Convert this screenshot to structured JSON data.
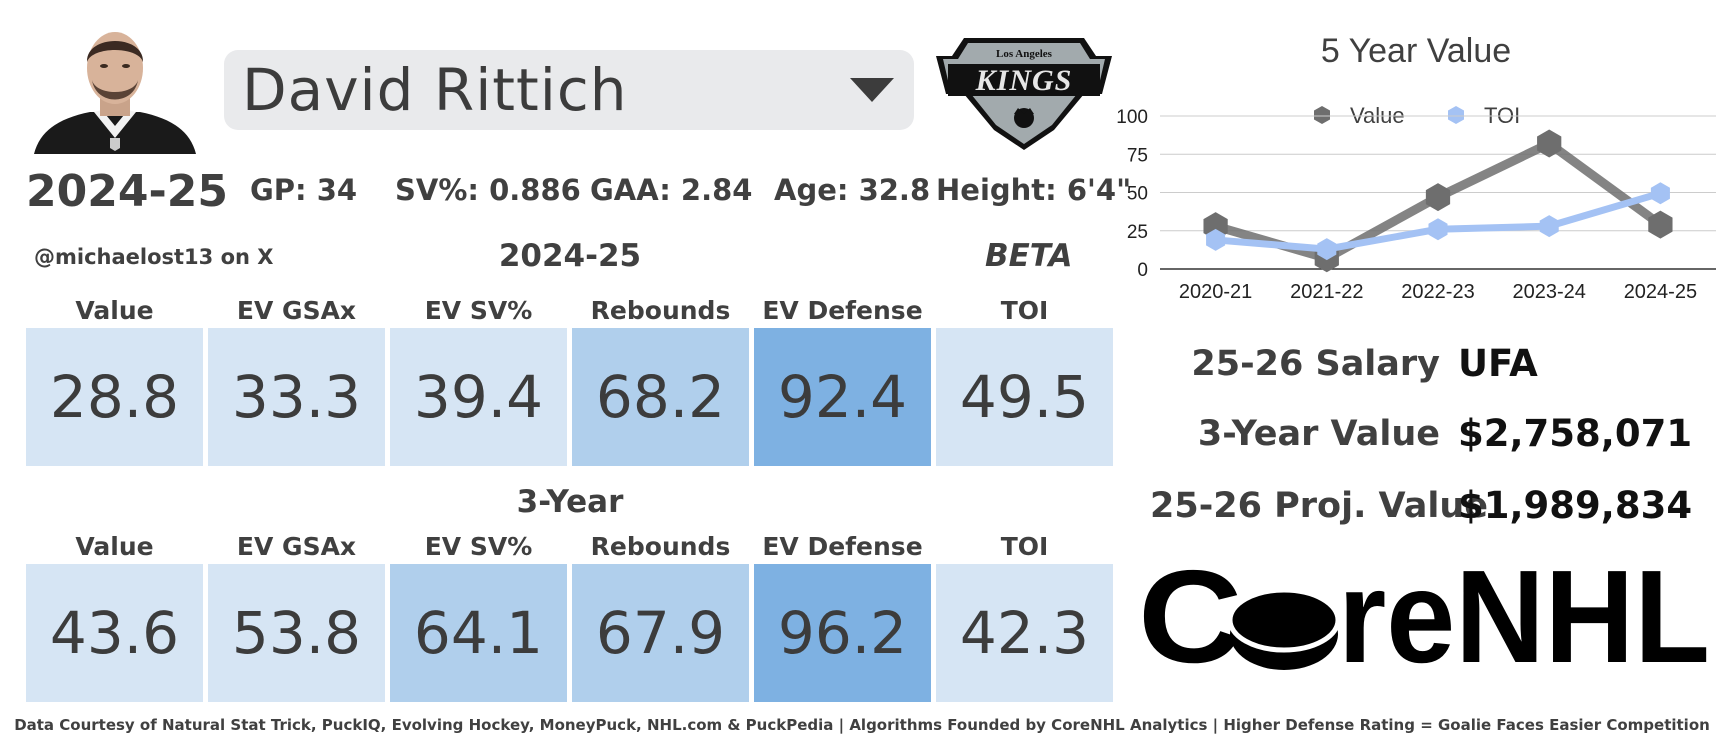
{
  "player": {
    "name": "David Rittich",
    "season": "2024-25",
    "stats": {
      "gp": "GP: 34",
      "sv_pct": "SV%: 0.886",
      "gaa": "GAA: 2.84",
      "age": "Age: 32.8",
      "height": "Height: 6'4\""
    }
  },
  "team": {
    "logo_top": "Los Angeles",
    "logo_main": "KINGS"
  },
  "credit": {
    "handle": "@michaelost13 on X",
    "beta": "BETA"
  },
  "current_season": {
    "title": "2024-25",
    "headers": [
      "Value",
      "EV GSAx",
      "EV SV%",
      "Rebounds",
      "EV Defense",
      "TOI"
    ],
    "values": [
      "28.8",
      "33.3",
      "39.4",
      "68.2",
      "92.4",
      "49.5"
    ],
    "colors": [
      "#d6e5f4",
      "#d6e5f4",
      "#d6e5f4",
      "#b0cfec",
      "#7eb1e2",
      "#d6e5f4"
    ]
  },
  "three_year": {
    "title": "3-Year",
    "headers": [
      "Value",
      "EV GSAx",
      "EV SV%",
      "Rebounds",
      "EV Defense",
      "TOI"
    ],
    "values": [
      "43.6",
      "53.8",
      "64.1",
      "67.9",
      "96.2",
      "42.3"
    ],
    "colors": [
      "#d6e5f4",
      "#d6e5f4",
      "#b0cfec",
      "#b0cfec",
      "#7eb1e2",
      "#d6e5f4"
    ]
  },
  "chart_data": {
    "type": "line",
    "title": "5 Year Value",
    "categories": [
      "2020-21",
      "2021-22",
      "2022-23",
      "2023-24",
      "2024-25"
    ],
    "series": [
      {
        "name": "Value",
        "values": [
          28,
          7,
          47,
          82,
          29
        ],
        "color": "#6e6e6e"
      },
      {
        "name": "TOI",
        "values": [
          19,
          13,
          26,
          28,
          49.5
        ],
        "color": "#a4c2f4"
      }
    ],
    "ylim": [
      0,
      100
    ],
    "yticks": [
      "0",
      "25",
      "50",
      "75",
      "100"
    ],
    "xlabel": "",
    "ylabel": "",
    "grid": true,
    "legend": "top"
  },
  "salary": {
    "salary_label": "25-26 Salary",
    "salary_value": "UFA",
    "three_year_label": "3-Year Value",
    "three_year_value": "$2,758,071",
    "proj_label": "25-26 Proj. Value",
    "proj_value": "$1,989,834"
  },
  "brand": {
    "logo_text": "CoreNHL"
  },
  "footer": "Data Courtesy of Natural Stat Trick, PuckIQ, Evolving Hockey, MoneyPuck, NHL.com & PuckPedia | Algorithms Founded by CoreNHL Analytics | Higher Defense Rating = Goalie Faces Easier Competition"
}
